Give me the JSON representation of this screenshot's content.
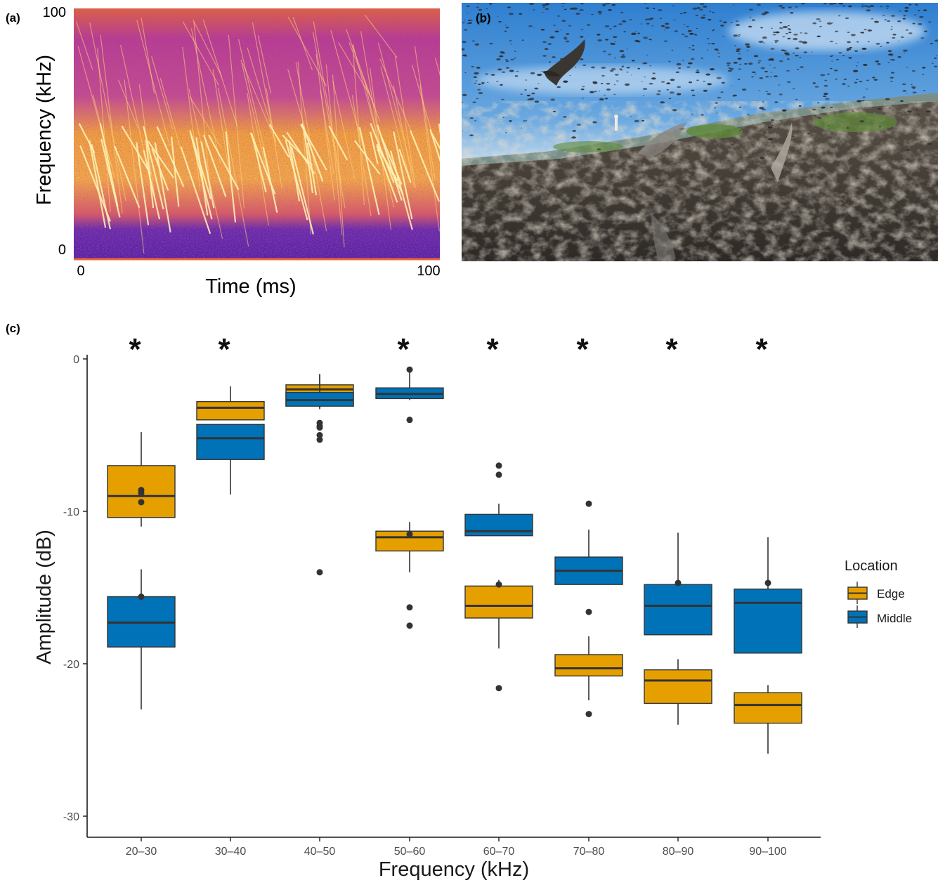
{
  "panel_a": {
    "label": "(a)",
    "ylabel": "Frequency (kHz)",
    "xlabel": "Time (ms)",
    "y_ticks": [
      "100",
      "0"
    ],
    "x_ticks": [
      "0",
      "100"
    ],
    "colors": {
      "background": "#6a2ba0",
      "band": "#f08a2a",
      "streak": "#fff2a8"
    }
  },
  "panel_b": {
    "label": "(b)",
    "colors": {
      "sky": "#3f8fd8",
      "horizon": "#a9c9e6",
      "ground": "#3f3a33",
      "vegetation": "#5f8a3a"
    }
  },
  "chart_data": {
    "type": "box",
    "label": "(c)",
    "xlabel": "Frequency (kHz)",
    "ylabel": "Amplitude (dB)",
    "ylim": [
      -31.4,
      0.6
    ],
    "y_ticks": [
      0,
      -10,
      -20,
      -30
    ],
    "categories": [
      "20–30",
      "30–40",
      "40–50",
      "50–60",
      "60–70",
      "70–80",
      "80–90",
      "90–100"
    ],
    "significance": [
      "*",
      "*",
      "",
      "*",
      "*",
      "*",
      "*",
      "*"
    ],
    "legend": {
      "title": "Location",
      "position": "right"
    },
    "series": [
      {
        "name": "Edge",
        "color": "#e5a000",
        "boxes": [
          {
            "whisker_low": -11.0,
            "q1": -10.4,
            "median": -9.0,
            "q3": -7.0,
            "whisker_high": -4.8,
            "outliers": [
              -8.6,
              -8.8,
              -9.4
            ]
          },
          {
            "whisker_low": -4.0,
            "q1": -4.0,
            "median": -3.2,
            "q3": -2.8,
            "whisker_high": -1.8,
            "outliers": []
          },
          {
            "whisker_low": -3.2,
            "q1": -3.1,
            "median": -2.0,
            "q3": -1.7,
            "whisker_high": -1.0,
            "outliers": []
          },
          {
            "whisker_low": -14.0,
            "q1": -12.6,
            "median": -11.7,
            "q3": -11.3,
            "whisker_high": -10.7,
            "outliers": [
              -11.5,
              -16.3,
              -17.5
            ]
          },
          {
            "whisker_low": -19.0,
            "q1": -17.0,
            "median": -16.2,
            "q3": -14.9,
            "whisker_high": -14.5,
            "outliers": [
              -14.8,
              -21.6
            ]
          },
          {
            "whisker_low": -22.4,
            "q1": -20.8,
            "median": -20.3,
            "q3": -19.4,
            "whisker_high": -18.2,
            "outliers": [
              -23.3
            ]
          },
          {
            "whisker_low": -24.0,
            "q1": -22.6,
            "median": -21.1,
            "q3": -20.4,
            "whisker_high": -19.7,
            "outliers": []
          },
          {
            "whisker_low": -25.9,
            "q1": -23.9,
            "median": -22.7,
            "q3": -21.9,
            "whisker_high": -21.4,
            "outliers": []
          }
        ]
      },
      {
        "name": "Middle",
        "color": "#0072b8",
        "boxes": [
          {
            "whisker_low": -23.0,
            "q1": -18.9,
            "median": -17.3,
            "q3": -15.6,
            "whisker_high": -13.8,
            "outliers": [
              -15.6
            ]
          },
          {
            "whisker_low": -8.9,
            "q1": -6.6,
            "median": -5.2,
            "q3": -4.3,
            "whisker_high": -4.3,
            "outliers": []
          },
          {
            "whisker_low": -3.3,
            "q1": -3.1,
            "median": -2.7,
            "q3": -2.2,
            "whisker_high": -1.0,
            "outliers": [
              -4.2,
              -4.4,
              -4.5,
              -5.0,
              -5.3,
              -14.0
            ]
          },
          {
            "whisker_low": -2.7,
            "q1": -2.6,
            "median": -2.3,
            "q3": -1.9,
            "whisker_high": -0.8,
            "outliers": [
              -0.7,
              -4.0
            ]
          },
          {
            "whisker_low": -11.6,
            "q1": -11.6,
            "median": -11.3,
            "q3": -10.2,
            "whisker_high": -9.5,
            "outliers": [
              -7.0,
              -7.6
            ]
          },
          {
            "whisker_low": -14.8,
            "q1": -14.8,
            "median": -13.9,
            "q3": -13.0,
            "whisker_high": -11.2,
            "outliers": [
              -9.5,
              -16.6
            ]
          },
          {
            "whisker_low": -18.1,
            "q1": -18.1,
            "median": -16.2,
            "q3": -14.8,
            "whisker_high": -11.4,
            "outliers": [
              -14.7
            ]
          },
          {
            "whisker_low": -19.3,
            "q1": -19.3,
            "median": -16.0,
            "q3": -15.1,
            "whisker_high": -11.7,
            "outliers": [
              -14.7
            ]
          }
        ]
      }
    ]
  }
}
